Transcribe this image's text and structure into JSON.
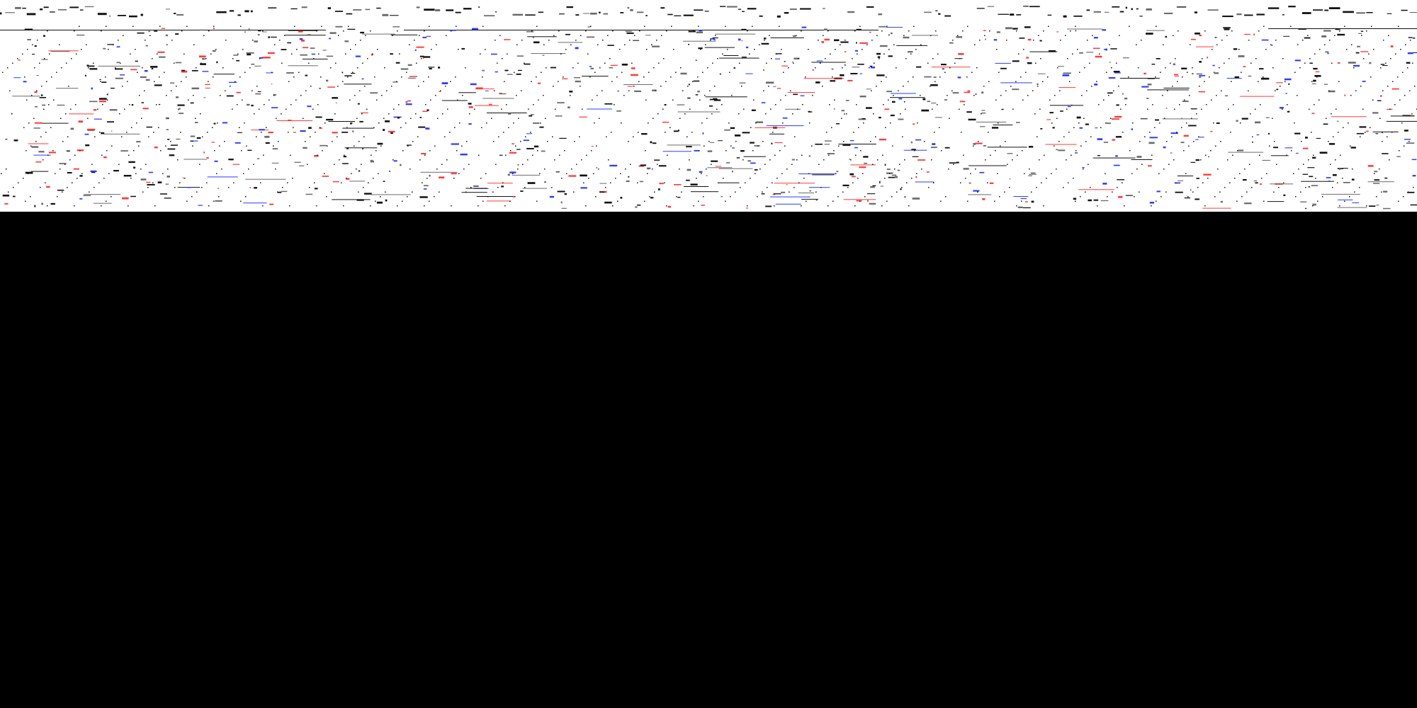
{
  "page": {
    "background_color": "#000000",
    "strip_background_color": "#ffffff"
  },
  "strip": {
    "description_visible": false,
    "palette": {
      "ink": "#111111",
      "grey": "#6b6b6b",
      "blue": "#2a3cff",
      "red": "#ff3a3a"
    },
    "panels_visible": 2
  }
}
